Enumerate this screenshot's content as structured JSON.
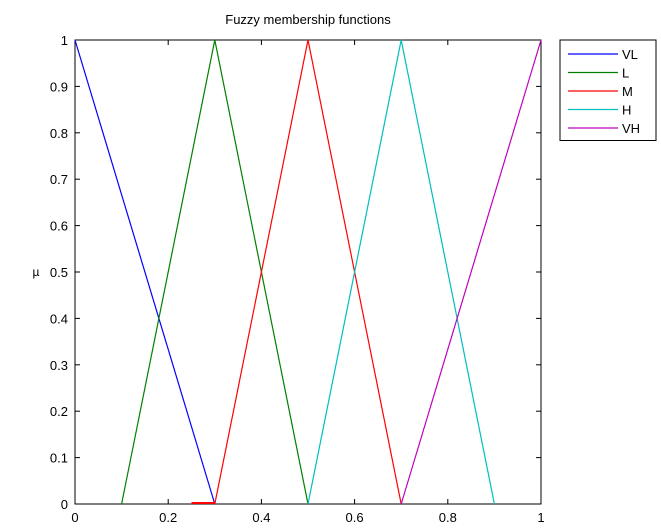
{
  "chart_data": {
    "type": "line",
    "title": "Fuzzy membership functions",
    "xlabel": "",
    "ylabel": "µ",
    "xlim": [
      0,
      1
    ],
    "ylim": [
      0,
      1
    ],
    "xticks": [
      0,
      0.2,
      0.4,
      0.6,
      0.8,
      1
    ],
    "yticks": [
      0,
      0.1,
      0.2,
      0.3,
      0.4,
      0.5,
      0.6,
      0.7,
      0.8,
      0.9,
      1
    ],
    "xtick_labels": [
      "0",
      "0.2",
      "0.4",
      "0.6",
      "0.8",
      "1"
    ],
    "ytick_labels": [
      "0",
      "0.1",
      "0.2",
      "0.3",
      "0.4",
      "0.5",
      "0.6",
      "0.7",
      "0.8",
      "0.9",
      "1"
    ],
    "grid": false,
    "legend_position": "outside-top-right",
    "series": [
      {
        "name": "VL",
        "color": "#0000ff",
        "x": [
          0,
          0.3
        ],
        "y": [
          1,
          0
        ]
      },
      {
        "name": "L",
        "color": "#008000",
        "x": [
          0.1,
          0.3,
          0.5
        ],
        "y": [
          0,
          1,
          0
        ]
      },
      {
        "name": "M",
        "color": "#ff0000",
        "x": [
          0.3,
          0.5,
          0.7
        ],
        "y": [
          0,
          1,
          0
        ]
      },
      {
        "name": "H",
        "color": "#00bfbf",
        "x": [
          0.5,
          0.7,
          0.9
        ],
        "y": [
          0,
          1,
          0
        ]
      },
      {
        "name": "VH",
        "color": "#bf00bf",
        "x": [
          0.7,
          1
        ],
        "y": [
          0,
          1
        ]
      }
    ],
    "annotations": [
      {
        "type": "segment",
        "color": "#ff0000",
        "x": [
          0.25,
          0.3
        ],
        "y": [
          0,
          0
        ]
      }
    ]
  }
}
